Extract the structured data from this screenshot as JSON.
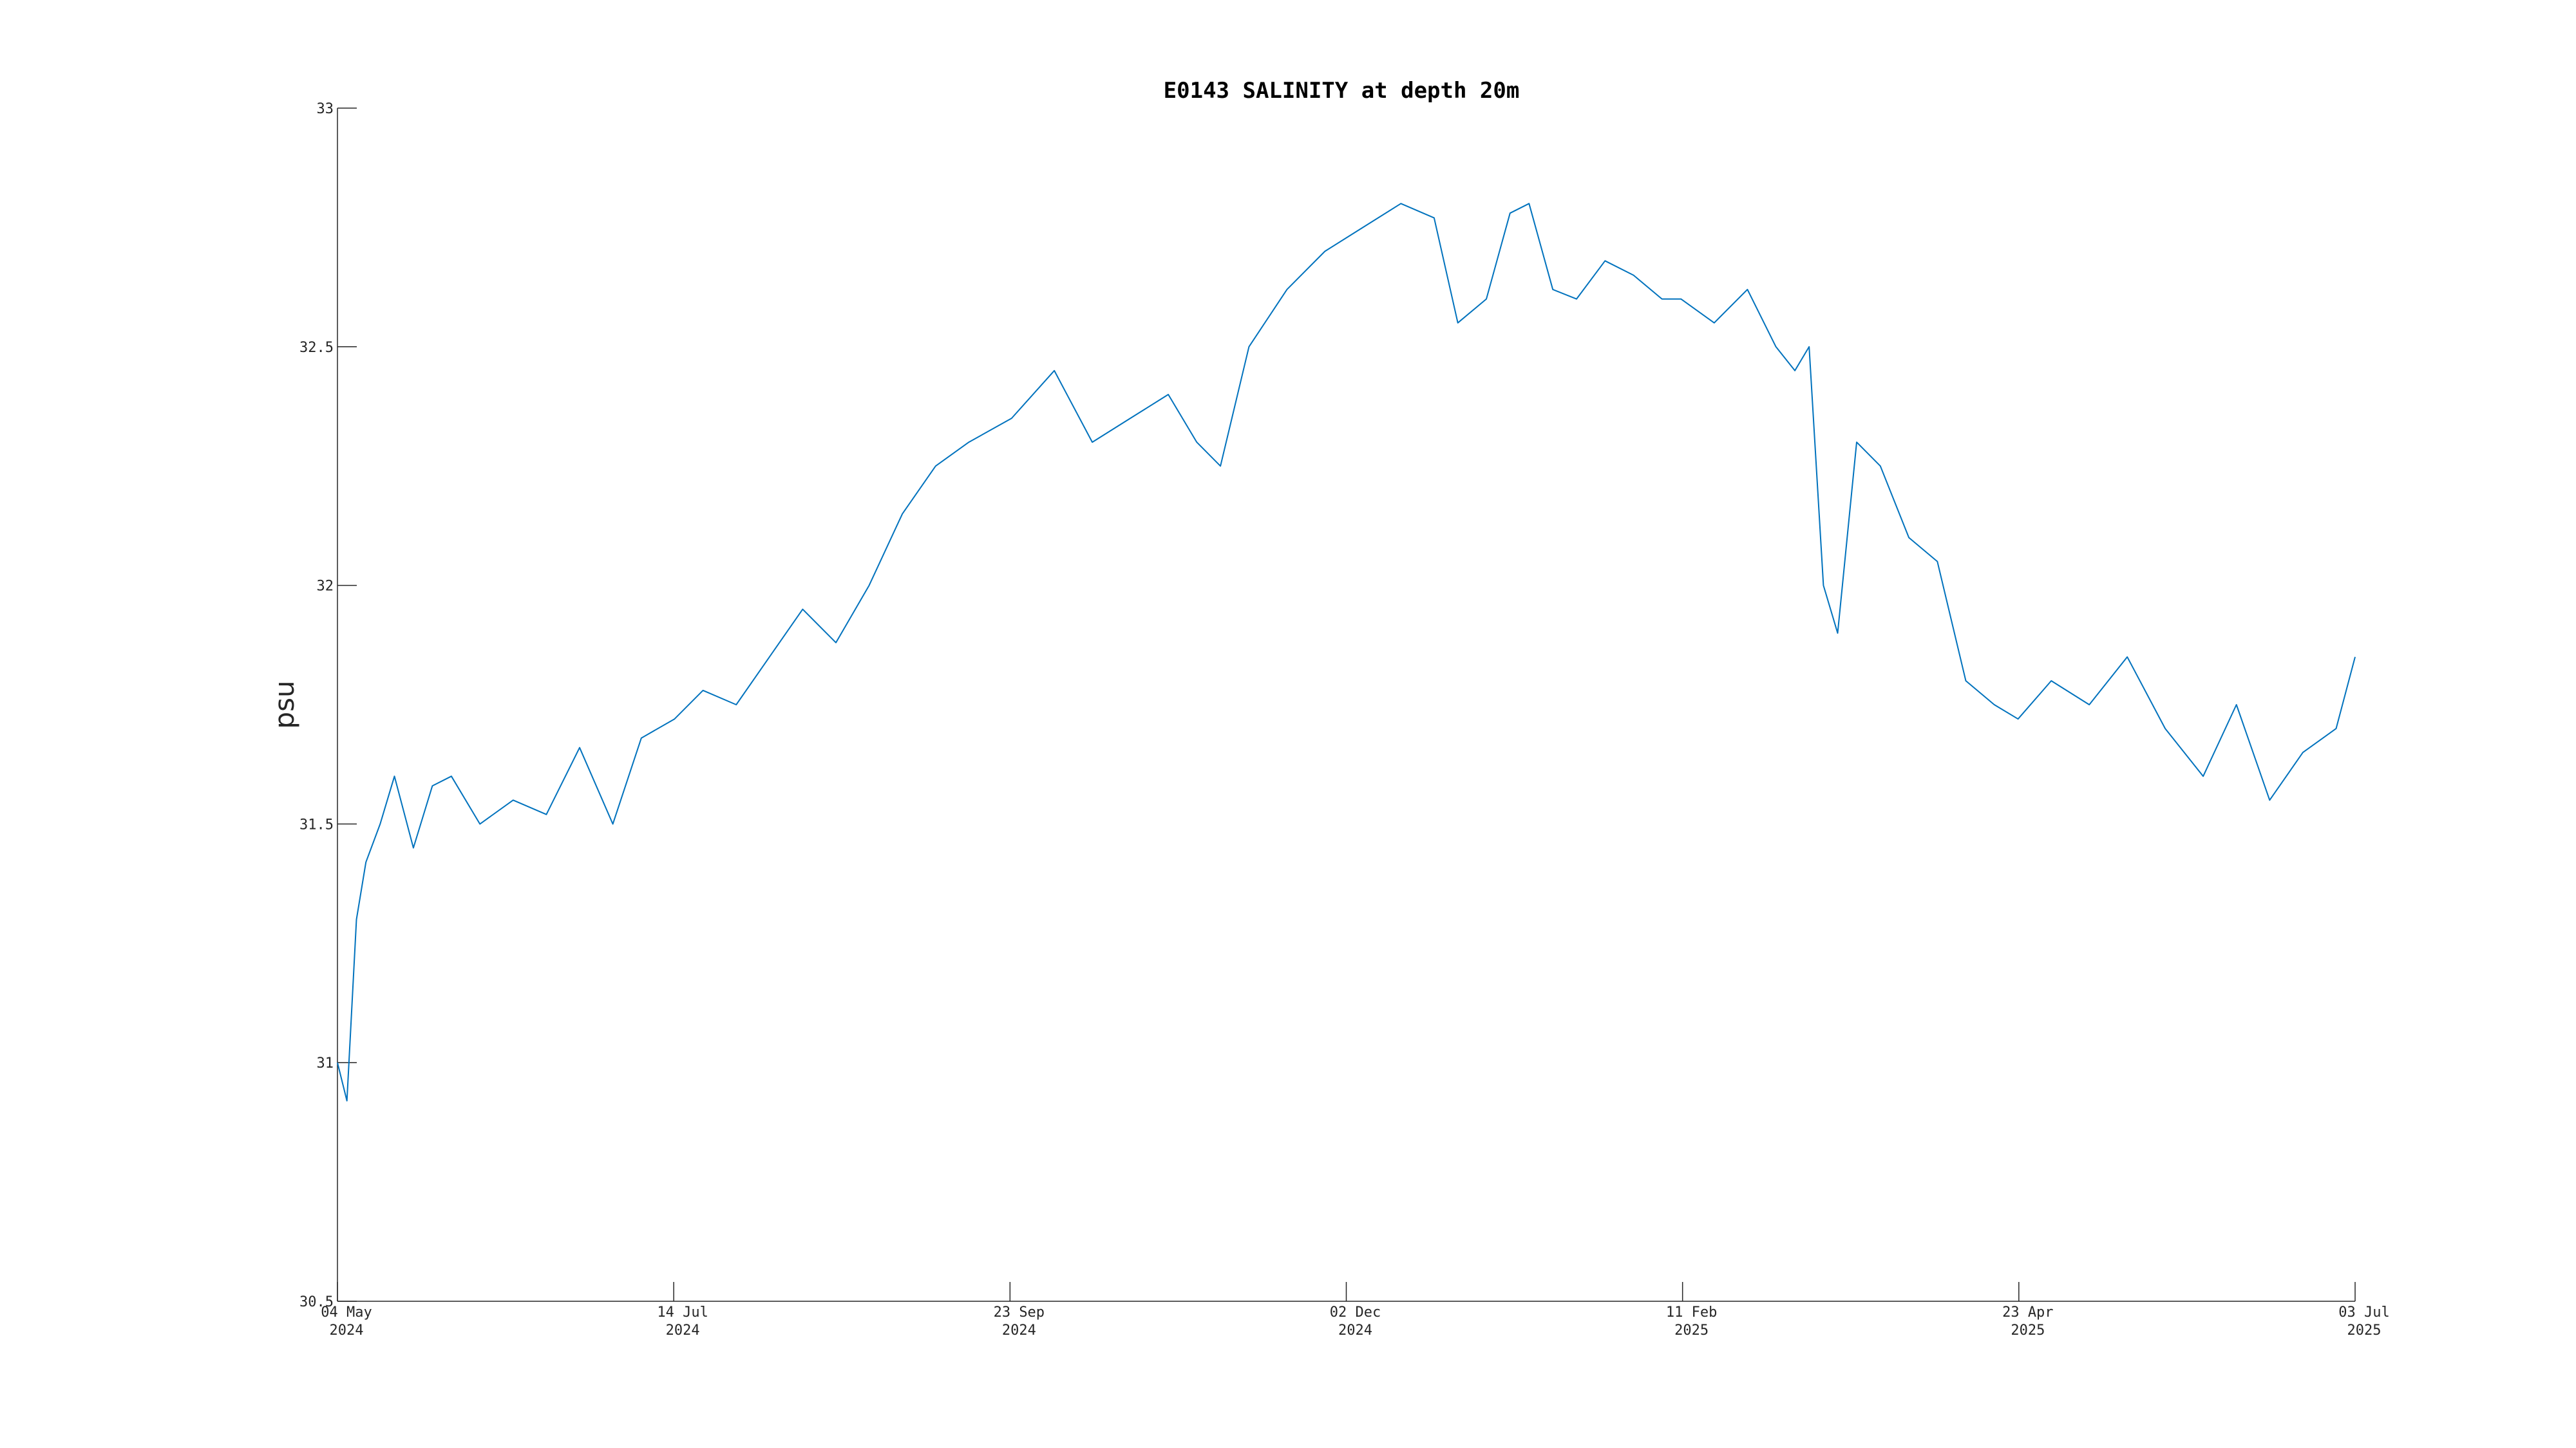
{
  "chart_data": {
    "type": "line",
    "title": "E0143 SALINITY at depth 20m",
    "xlabel": "",
    "ylabel": "psu",
    "xlim": [
      "2024-05-04",
      "2025-07-03"
    ],
    "ylim": [
      30.5,
      33
    ],
    "grid": false,
    "legend": "none",
    "x_ticks": [
      {
        "day": "04 May",
        "year": "2024"
      },
      {
        "day": "14 Jul",
        "year": "2024"
      },
      {
        "day": "23 Sep",
        "year": "2024"
      },
      {
        "day": "02 Dec",
        "year": "2024"
      },
      {
        "day": "11 Feb",
        "year": "2025"
      },
      {
        "day": "23 Apr",
        "year": "2025"
      },
      {
        "day": "03 Jul",
        "year": "2025"
      }
    ],
    "y_ticks": [
      "30.5",
      "31",
      "31.5",
      "32",
      "32.5",
      "33"
    ],
    "series": [
      {
        "color": "#0072BD",
        "x": [
          "2024-05-04",
          "2024-05-06",
          "2024-05-08",
          "2024-05-10",
          "2024-05-13",
          "2024-05-16",
          "2024-05-20",
          "2024-05-24",
          "2024-05-28",
          "2024-06-03",
          "2024-06-10",
          "2024-06-17",
          "2024-06-24",
          "2024-07-01",
          "2024-07-07",
          "2024-07-14",
          "2024-07-20",
          "2024-07-27",
          "2024-08-03",
          "2024-08-10",
          "2024-08-17",
          "2024-08-24",
          "2024-08-31",
          "2024-09-07",
          "2024-09-14",
          "2024-09-23",
          "2024-10-02",
          "2024-10-10",
          "2024-10-18",
          "2024-10-26",
          "2024-11-01",
          "2024-11-06",
          "2024-11-12",
          "2024-11-20",
          "2024-11-28",
          "2024-12-06",
          "2024-12-14",
          "2024-12-21",
          "2024-12-26",
          "2025-01-01",
          "2025-01-06",
          "2025-01-10",
          "2025-01-15",
          "2025-01-20",
          "2025-01-26",
          "2025-02-01",
          "2025-02-07",
          "2025-02-11",
          "2025-02-18",
          "2025-02-25",
          "2025-03-03",
          "2025-03-07",
          "2025-03-10",
          "2025-03-13",
          "2025-03-16",
          "2025-03-20",
          "2025-03-25",
          "2025-03-31",
          "2025-04-06",
          "2025-04-12",
          "2025-04-18",
          "2025-04-23",
          "2025-04-30",
          "2025-05-08",
          "2025-05-16",
          "2025-05-24",
          "2025-06-01",
          "2025-06-08",
          "2025-06-15",
          "2025-06-22",
          "2025-06-29",
          "2025-07-03"
        ],
        "y": [
          31.0,
          30.92,
          31.3,
          31.42,
          31.5,
          31.6,
          31.45,
          31.58,
          31.6,
          31.5,
          31.55,
          31.52,
          31.66,
          31.5,
          31.68,
          31.72,
          31.78,
          31.75,
          31.85,
          31.95,
          31.88,
          32.0,
          32.15,
          32.25,
          32.3,
          32.35,
          32.45,
          32.3,
          32.35,
          32.4,
          32.3,
          32.25,
          32.5,
          32.62,
          32.7,
          32.75,
          32.8,
          32.77,
          32.55,
          32.6,
          32.78,
          32.8,
          32.62,
          32.6,
          32.68,
          32.65,
          32.6,
          32.6,
          32.55,
          32.62,
          32.5,
          32.45,
          32.5,
          32.0,
          31.9,
          32.3,
          32.25,
          32.1,
          32.05,
          31.8,
          31.75,
          31.72,
          31.8,
          31.75,
          31.85,
          31.7,
          31.6,
          31.75,
          31.55,
          31.65,
          31.7,
          31.85
        ]
      }
    ]
  }
}
